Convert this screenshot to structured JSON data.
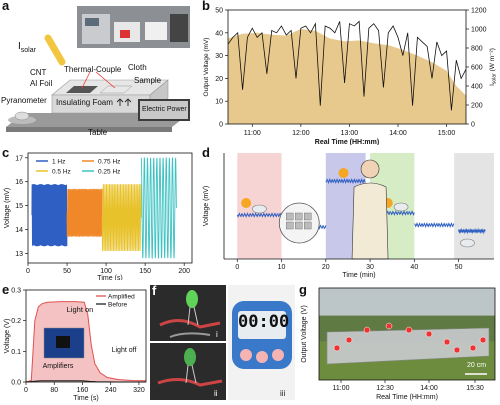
{
  "panel_letters": {
    "a": "a",
    "b": "b",
    "c": "c",
    "d": "d",
    "e": "e",
    "f": "f",
    "g": "g"
  },
  "schematic": {
    "isolar": "I",
    "isolar_sub": "solar",
    "cnt": "CNT",
    "thermocouple": "Thermal-Couple",
    "cloth": "Cloth",
    "al_foil": "Al Foil",
    "sample": "Sample",
    "pyranometer": "Pyranometer",
    "insulating_foam": "Insulating Foam",
    "electric_power": "Electric Power",
    "table": "Table"
  },
  "photo_labels": {
    "f_i": "i",
    "f_ii": "ii",
    "f_iii": "iii",
    "g_scale": "20 cm",
    "timer_display": "00:00"
  },
  "chart_data": [
    {
      "id": "b",
      "type": "line",
      "ylabel": "Output Voltage (mV)",
      "y2label_main": "I",
      "y2label_sub": "solar",
      "y2label_unit": "(W m⁻²)",
      "xlabel": "Real Time (HH:mm)",
      "x_ticks": [
        "11:00",
        "12:00",
        "13:00",
        "14:00",
        "15:00"
      ],
      "y_ticks": [
        0,
        10,
        20,
        30,
        40,
        50
      ],
      "y2_ticks": [
        0,
        200,
        400,
        600,
        800,
        1000,
        1200
      ],
      "ylim": [
        0,
        50
      ],
      "y2lim": [
        0,
        1200
      ],
      "x_range_hours": [
        10.5,
        15.4
      ],
      "series": [
        {
          "color": "#111111",
          "t": [
            10.5,
            10.6,
            10.7,
            10.8,
            10.9,
            11.0,
            11.1,
            11.2,
            11.3,
            11.4,
            11.5,
            11.6,
            11.7,
            11.8,
            11.9,
            12.0,
            12.1,
            12.2,
            12.3,
            12.4,
            12.5,
            12.6,
            12.7,
            12.8,
            12.9,
            13.0,
            13.1,
            13.2,
            13.3,
            13.4,
            13.5,
            13.6,
            13.7,
            13.8,
            13.9,
            14.0,
            14.1,
            14.2,
            14.3,
            14.4,
            14.5,
            14.6,
            14.7,
            14.8,
            14.9,
            15.0,
            15.1,
            15.2,
            15.3,
            15.4
          ],
          "values": [
            35,
            38,
            40,
            15,
            38,
            42,
            38,
            40,
            22,
            41,
            40,
            43,
            39,
            41,
            20,
            42,
            43,
            40,
            44,
            8,
            43,
            42,
            40,
            45,
            18,
            44,
            43,
            45,
            12,
            42,
            44,
            41,
            16,
            40,
            43,
            38,
            30,
            40,
            8,
            38,
            36,
            34,
            20,
            36,
            30,
            32,
            6,
            28,
            20,
            24
          ]
        },
        {
          "color": "#e8c98d",
          "t": [
            10.5,
            10.8,
            11.1,
            11.4,
            11.7,
            12.0,
            12.3,
            12.6,
            12.9,
            13.2,
            13.5,
            13.8,
            14.1,
            14.4,
            14.7,
            15.0,
            15.2,
            15.4
          ],
          "values": [
            900,
            950,
            960,
            940,
            930,
            1000,
            980,
            900,
            870,
            880,
            850,
            830,
            780,
            720,
            650,
            560,
            400,
            300
          ]
        }
      ]
    },
    {
      "id": "c",
      "type": "line",
      "ylabel": "Voltage (mV)",
      "xlabel": "Time (s)",
      "x_ticks": [
        0,
        50,
        100,
        150,
        200
      ],
      "y_ticks": [
        13,
        14,
        15,
        16,
        17
      ],
      "ylim": [
        12.6,
        17.2
      ],
      "xlim": [
        0,
        210
      ],
      "series": [
        {
          "name": "1 Hz",
          "color": "#2f5fc2",
          "x0": 5,
          "x1": 50,
          "freq": 1,
          "amp": 1.3,
          "center": 14.6
        },
        {
          "name": "0.75 Hz",
          "color": "#f0882a",
          "x0": 50,
          "x1": 95,
          "freq": 0.75,
          "amp": 1.0,
          "center": 14.7
        },
        {
          "name": "0.5 Hz",
          "color": "#e8c22b",
          "x0": 95,
          "x1": 145,
          "freq": 0.5,
          "amp": 1.4,
          "center": 14.5
        },
        {
          "name": "0.25 Hz",
          "color": "#3cc2c2",
          "x0": 145,
          "x1": 190,
          "freq": 0.25,
          "amp": 2.1,
          "center": 14.9
        }
      ]
    },
    {
      "id": "d",
      "type": "line",
      "ylabel": "Voltage (mV)",
      "xlabel": "Time (min)",
      "x_ticks": [
        0,
        10,
        20,
        30,
        40,
        50
      ],
      "xlim": [
        -3,
        58
      ],
      "bands": [
        {
          "from": 0,
          "to": 10,
          "color": "#f7d4d4"
        },
        {
          "from": 20,
          "to": 29,
          "color": "#c8c8ea"
        },
        {
          "from": 30,
          "to": 40,
          "color": "#d6ecc4"
        },
        {
          "from": 49,
          "to": 58,
          "color": "#e4e4e4"
        }
      ]
    },
    {
      "id": "e",
      "type": "line",
      "ylabel": "Voltage (V)",
      "xlabel": "Time (s)",
      "x_ticks": [
        0,
        80,
        160,
        240,
        320
      ],
      "y_ticks": [
        0.0,
        0.1,
        0.2,
        0.3
      ],
      "ylim": [
        0,
        0.3
      ],
      "xlim": [
        0,
        340
      ],
      "annotations": [
        "Light on",
        "Light off",
        "Amplifiers"
      ],
      "series": [
        {
          "name": "Amplified",
          "color": "#e05050",
          "x": [
            0,
            15,
            25,
            35,
            45,
            60,
            100,
            140,
            165,
            175,
            185,
            195,
            210,
            230,
            260,
            300,
            340
          ],
          "values": [
            0.0,
            0.005,
            0.2,
            0.245,
            0.255,
            0.26,
            0.262,
            0.262,
            0.26,
            0.22,
            0.12,
            0.06,
            0.03,
            0.015,
            0.008,
            0.005,
            0.004
          ]
        },
        {
          "name": "Before",
          "color": "#222222",
          "x": [
            0,
            20,
            40,
            100,
            160,
            180,
            200,
            260,
            340
          ],
          "values": [
            0.0,
            0.002,
            0.004,
            0.004,
            0.004,
            0.002,
            0.001,
            0.0,
            0.0
          ]
        }
      ]
    },
    {
      "id": "g",
      "type": "line",
      "ylabel": "Output Voltage (V)",
      "xlabel": "Real Time (HH:mm)",
      "x_ticks": [
        "11:00",
        "12:30",
        "14:00",
        "15:30"
      ]
    }
  ]
}
